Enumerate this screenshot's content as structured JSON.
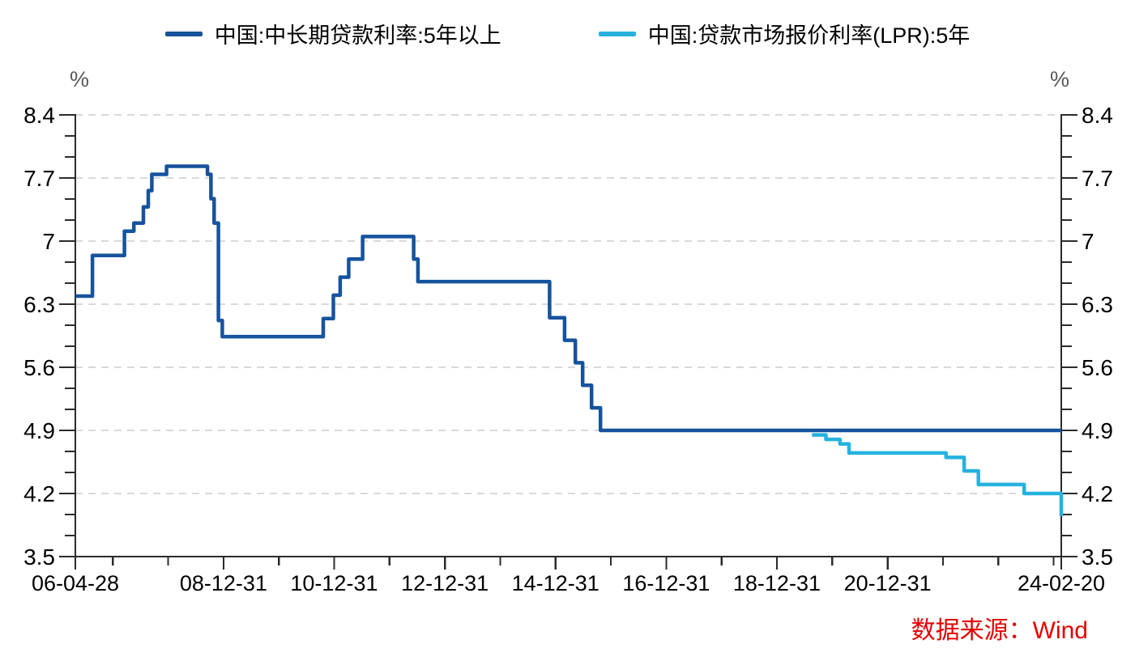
{
  "style": {
    "background": "#FFFFFF",
    "axis_color": "#2B2B2B",
    "grid_color": "#D9D9D9",
    "tick_label_color": "#000000",
    "unit_label_color": "#595959",
    "source_color": "#E60000",
    "series_dark_blue": "#16539D",
    "series_light_blue": "#25B2DF"
  },
  "chart_data": {
    "type": "line",
    "line_shape": "step-after",
    "title": "",
    "y_unit": "%",
    "ylim": [
      3.5,
      8.4
    ],
    "y_major_ticks": [
      3.5,
      4.2,
      4.9,
      5.6,
      6.3,
      7.0,
      7.7,
      8.4
    ],
    "y_tick_labels": [
      "3.5",
      "4.2",
      "4.9",
      "5.6",
      "6.3",
      "7",
      "7.7",
      "8.4"
    ],
    "y_minor_ticks_per_interval": 2,
    "grid": "horizontal dashed gridlines at major y ticks",
    "legend_position": "top-center",
    "x_range": [
      "2006-04-28",
      "2024-02-20"
    ],
    "x_major_ticks": [
      {
        "date": "2006-04-28",
        "label": "06-04-28"
      },
      {
        "date": "2008-12-31",
        "label": "08-12-31"
      },
      {
        "date": "2010-12-31",
        "label": "10-12-31"
      },
      {
        "date": "2012-12-31",
        "label": "12-12-31"
      },
      {
        "date": "2014-12-31",
        "label": "14-12-31"
      },
      {
        "date": "2016-12-31",
        "label": "16-12-31"
      },
      {
        "date": "2018-12-31",
        "label": "18-12-31"
      },
      {
        "date": "2020-12-31",
        "label": "20-12-31"
      },
      {
        "date": "2024-02-20",
        "label": "24-02-20"
      }
    ],
    "x_minor_ticks": [
      "2006-12-31",
      "2007-12-31",
      "2009-12-31",
      "2011-12-31",
      "2013-12-31",
      "2015-12-31",
      "2017-12-31",
      "2019-12-31",
      "2021-12-31",
      "2022-12-31",
      "2023-12-31"
    ],
    "series": [
      {
        "name": "中国:中长期贷款利率:5年以上",
        "color": "#16539D",
        "unit": "%",
        "points": [
          [
            "2006-04-28",
            6.39
          ],
          [
            "2006-08-19",
            6.84
          ],
          [
            "2007-03-18",
            7.11
          ],
          [
            "2007-05-19",
            7.2
          ],
          [
            "2007-07-21",
            7.38
          ],
          [
            "2007-08-22",
            7.56
          ],
          [
            "2007-09-15",
            7.74
          ],
          [
            "2007-12-21",
            7.83
          ],
          [
            "2008-09-16",
            7.74
          ],
          [
            "2008-10-09",
            7.47
          ],
          [
            "2008-10-30",
            7.2
          ],
          [
            "2008-11-27",
            6.12
          ],
          [
            "2008-12-23",
            5.94
          ],
          [
            "2010-10-20",
            6.14
          ],
          [
            "2010-12-26",
            6.4
          ],
          [
            "2011-02-09",
            6.6
          ],
          [
            "2011-04-06",
            6.8
          ],
          [
            "2011-07-07",
            7.05
          ],
          [
            "2012-06-08",
            6.8
          ],
          [
            "2012-07-06",
            6.55
          ],
          [
            "2014-11-22",
            6.15
          ],
          [
            "2015-03-01",
            5.9
          ],
          [
            "2015-05-11",
            5.65
          ],
          [
            "2015-06-28",
            5.4
          ],
          [
            "2015-08-26",
            5.15
          ],
          [
            "2015-10-24",
            4.9
          ],
          [
            "2024-02-20",
            4.9
          ]
        ]
      },
      {
        "name": "中国:贷款市场报价利率(LPR):5年",
        "color": "#25B2DF",
        "unit": "%",
        "points": [
          [
            "2019-08-20",
            4.85
          ],
          [
            "2019-11-20",
            4.8
          ],
          [
            "2020-02-20",
            4.75
          ],
          [
            "2020-04-20",
            4.65
          ],
          [
            "2022-01-20",
            4.6
          ],
          [
            "2022-05-20",
            4.45
          ],
          [
            "2022-08-22",
            4.3
          ],
          [
            "2023-06-20",
            4.2
          ],
          [
            "2024-02-20",
            3.95
          ]
        ]
      }
    ],
    "source_note": "数据来源：Wind"
  }
}
